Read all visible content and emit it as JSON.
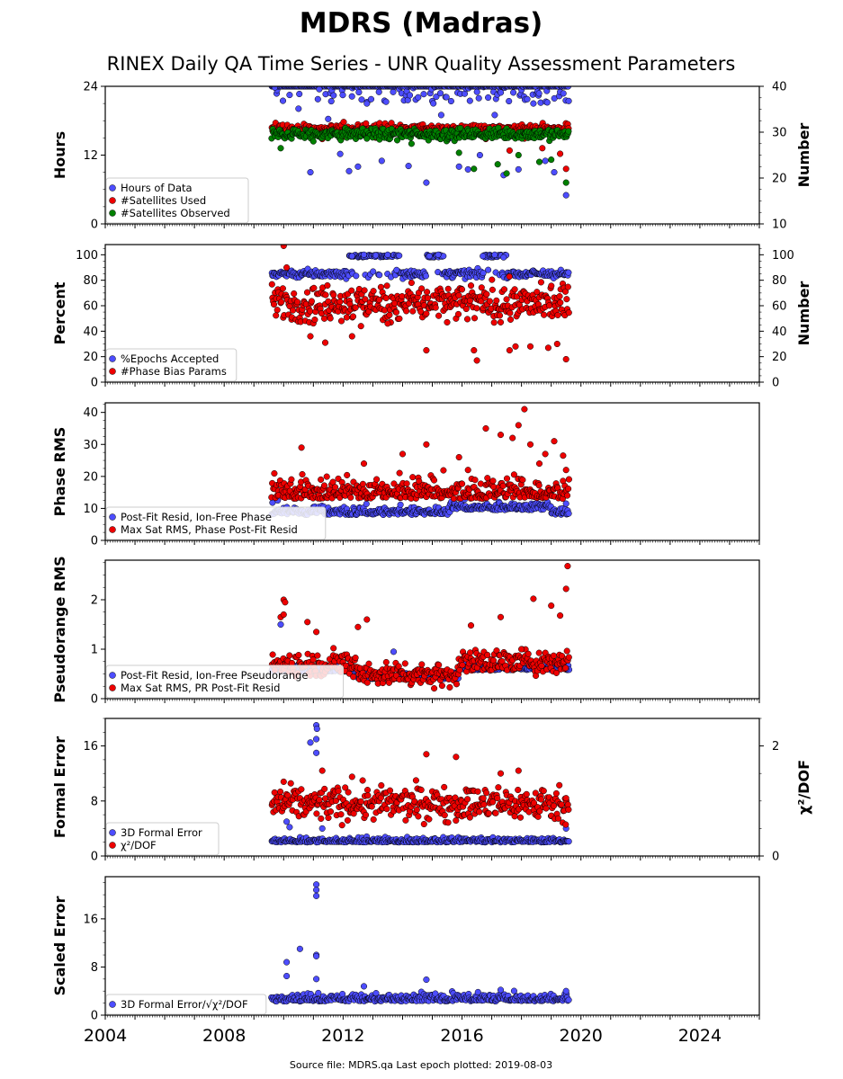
{
  "figure": {
    "title": "MDRS (Madras)",
    "subtitle": "RINEX Daily QA Time Series - UNR Quality Assessment Parameters",
    "source_note": "Source file: MDRS.qa Last epoch plotted: 2019-08-03"
  },
  "colors": {
    "blue": "#4d4dff",
    "red": "#ee0000",
    "green": "#008000"
  },
  "chart_data": [
    {
      "type": "scatter",
      "ylabel": "Hours",
      "ylabel2": "Number",
      "xlim": [
        2004,
        2026
      ],
      "ylim": [
        0,
        24
      ],
      "ylim2": [
        10,
        40
      ],
      "yticks": [
        0,
        12,
        24
      ],
      "yticks2": [
        10,
        20,
        30,
        40
      ],
      "legend_position": "lower-left",
      "series": [
        {
          "name": "Hours of Data",
          "color": "#4d4dff",
          "axis": "left",
          "period_start": 2009.6,
          "period_end": 2019.59,
          "points": [
            [
              2009.7,
              23.8
            ],
            [
              2010.2,
              22.5
            ],
            [
              2010.5,
              20.1
            ],
            [
              2010.9,
              9.0
            ],
            [
              2011.2,
              23.5
            ],
            [
              2011.5,
              18.3
            ],
            [
              2011.9,
              12.2
            ],
            [
              2012.2,
              9.2
            ],
            [
              2012.5,
              10.0
            ],
            [
              2012.8,
              21.0
            ],
            [
              2013.3,
              11.0
            ],
            [
              2013.6,
              16.5
            ],
            [
              2014.2,
              10.1
            ],
            [
              2014.8,
              7.2
            ],
            [
              2015.3,
              19.0
            ],
            [
              2015.6,
              15.0
            ],
            [
              2015.9,
              10.0
            ],
            [
              2016.2,
              9.5
            ],
            [
              2016.6,
              12.0
            ],
            [
              2017.1,
              19.0
            ],
            [
              2017.4,
              8.5
            ],
            [
              2017.9,
              9.5
            ],
            [
              2018.4,
              21.0
            ],
            [
              2018.8,
              11.0
            ],
            [
              2019.1,
              9.0
            ],
            [
              2019.5,
              5.0
            ]
          ]
        },
        {
          "name": "#Satellites Used",
          "color": "#ee0000",
          "axis": "right",
          "period_start": 2009.6,
          "period_end": 2019.59,
          "points": [
            [
              2010.8,
              29.4
            ],
            [
              2011.3,
              28.5
            ],
            [
              2012.0,
              29.0
            ],
            [
              2013.1,
              28.8
            ],
            [
              2014.5,
              29.5
            ],
            [
              2015.5,
              28.2
            ],
            [
              2016.8,
              28.5
            ],
            [
              2017.6,
              26.0
            ],
            [
              2018.1,
              28.6
            ],
            [
              2018.7,
              26.5
            ],
            [
              2019.3,
              25.3
            ],
            [
              2019.5,
              22.0
            ]
          ]
        },
        {
          "name": "#Satellites Observed",
          "color": "#008000",
          "axis": "right",
          "period_start": 2009.6,
          "period_end": 2019.59,
          "points": [
            [
              2009.9,
              26.5
            ],
            [
              2011.0,
              28.0
            ],
            [
              2012.8,
              28.6
            ],
            [
              2014.3,
              27.5
            ],
            [
              2015.9,
              25.5
            ],
            [
              2016.4,
              22.0
            ],
            [
              2017.2,
              23.0
            ],
            [
              2017.5,
              21.0
            ],
            [
              2017.9,
              25.0
            ],
            [
              2018.6,
              23.5
            ],
            [
              2019.0,
              24.0
            ],
            [
              2019.5,
              19.0
            ]
          ]
        }
      ]
    },
    {
      "type": "scatter",
      "ylabel": "Percent",
      "ylabel2": "Number",
      "xlim": [
        2004,
        2026
      ],
      "ylim": [
        0,
        108
      ],
      "ylim2": [
        0,
        108
      ],
      "yticks": [
        0,
        20,
        40,
        60,
        80,
        100
      ],
      "yticks2": [
        0,
        20,
        40,
        60,
        80,
        100
      ],
      "legend_position": "lower-left",
      "series": [
        {
          "name": "%Epochs Accepted",
          "color": "#4d4dff",
          "axis": "left",
          "period_start": 2009.6,
          "period_end": 2019.59,
          "points": [
            [
              2012.3,
              99.0
            ],
            [
              2012.7,
              100.0
            ],
            [
              2013.1,
              99.5
            ],
            [
              2013.5,
              100.0
            ],
            [
              2014.9,
              99.0
            ],
            [
              2015.2,
              100.0
            ],
            [
              2016.7,
              99.0
            ],
            [
              2017.1,
              100.0
            ],
            [
              2017.4,
              98.0
            ],
            [
              2013.8,
              88.0
            ]
          ]
        },
        {
          "name": "#Phase Bias Params",
          "color": "#ee0000",
          "axis": "right",
          "period_start": 2009.6,
          "period_end": 2019.59,
          "points": [
            [
              2010.0,
              107.0
            ],
            [
              2010.1,
              90.0
            ],
            [
              2010.9,
              36.0
            ],
            [
              2011.4,
              31.0
            ],
            [
              2012.3,
              36.0
            ],
            [
              2012.6,
              44.0
            ],
            [
              2013.5,
              46.0
            ],
            [
              2014.3,
              78.0
            ],
            [
              2014.8,
              25.0
            ],
            [
              2015.5,
              47.0
            ],
            [
              2016.4,
              25.0
            ],
            [
              2016.5,
              17.0
            ],
            [
              2017.6,
              25.0
            ],
            [
              2017.8,
              28.0
            ],
            [
              2018.3,
              28.0
            ],
            [
              2018.9,
              27.0
            ],
            [
              2019.2,
              30.0
            ],
            [
              2019.5,
              18.0
            ]
          ]
        }
      ]
    },
    {
      "type": "scatter",
      "ylabel": "Phase RMS",
      "xlim": [
        2004,
        2026
      ],
      "ylim": [
        0,
        43
      ],
      "yticks": [
        0,
        10,
        20,
        30,
        40
      ],
      "legend_position": "lower-left",
      "series": [
        {
          "name": "Post-Fit Resid, Ion-Free Phase",
          "color": "#4d4dff",
          "axis": "left",
          "period_start": 2009.6,
          "period_end": 2019.59,
          "points": [
            [
              2009.8,
              12.5
            ],
            [
              2019.5,
              11.5
            ]
          ]
        },
        {
          "name": "Max Sat RMS, Phase Post-Fit Resid",
          "color": "#ee0000",
          "axis": "left",
          "period_start": 2009.6,
          "period_end": 2019.59,
          "points": [
            [
              2010.6,
              29.0
            ],
            [
              2012.7,
              24.0
            ],
            [
              2014.0,
              27.0
            ],
            [
              2014.8,
              30.0
            ],
            [
              2015.9,
              26.0
            ],
            [
              2016.2,
              22.0
            ],
            [
              2016.8,
              35.0
            ],
            [
              2017.3,
              33.0
            ],
            [
              2017.7,
              32.0
            ],
            [
              2017.9,
              36.0
            ],
            [
              2018.1,
              41.0
            ],
            [
              2018.3,
              30.0
            ],
            [
              2018.6,
              24.0
            ],
            [
              2018.8,
              27.0
            ],
            [
              2019.1,
              31.0
            ],
            [
              2019.4,
              26.5
            ],
            [
              2019.5,
              22.0
            ]
          ]
        }
      ]
    },
    {
      "type": "scatter",
      "ylabel": "Pseudorange RMS",
      "xlim": [
        2004,
        2026
      ],
      "ylim": [
        0,
        2.8
      ],
      "yticks": [
        0,
        1,
        2
      ],
      "legend_position": "lower-left",
      "series": [
        {
          "name": "Post-Fit Resid, Ion-Free Pseudorange",
          "color": "#4d4dff",
          "axis": "left",
          "period_start": 2009.6,
          "period_end": 2019.59,
          "points": [
            [
              2009.9,
              1.5
            ],
            [
              2013.7,
              0.95
            ],
            [
              2019.5,
              0.6
            ]
          ]
        },
        {
          "name": "Max Sat RMS, PR Post-Fit Resid",
          "color": "#ee0000",
          "axis": "left",
          "period_start": 2009.6,
          "period_end": 2019.59,
          "points": [
            [
              2010.0,
              2.0
            ],
            [
              2010.05,
              1.95
            ],
            [
              2009.9,
              1.65
            ],
            [
              2010.0,
              1.7
            ],
            [
              2010.8,
              1.55
            ],
            [
              2011.1,
              1.35
            ],
            [
              2012.5,
              1.45
            ],
            [
              2012.8,
              1.6
            ],
            [
              2016.3,
              1.48
            ],
            [
              2017.3,
              1.65
            ],
            [
              2018.0,
              1.0
            ],
            [
              2018.4,
              2.02
            ],
            [
              2019.0,
              1.88
            ],
            [
              2019.3,
              1.68
            ],
            [
              2019.5,
              2.22
            ],
            [
              2019.55,
              2.68
            ]
          ]
        }
      ]
    },
    {
      "type": "scatter",
      "ylabel": "Formal Error",
      "ylabel2": "χ²/DOF",
      "xlim": [
        2004,
        2026
      ],
      "ylim": [
        0,
        20
      ],
      "ylim2": [
        0,
        2.5
      ],
      "yticks": [
        0,
        8,
        16
      ],
      "yticks2": [
        0,
        2
      ],
      "legend_position": "lower-left",
      "series": [
        {
          "name": "3D Formal Error",
          "color": "#4d4dff",
          "axis": "left",
          "period_start": 2009.6,
          "period_end": 2019.59,
          "points": [
            [
              2010.9,
              16.5
            ],
            [
              2011.1,
              19.0
            ],
            [
              2011.12,
              18.5
            ],
            [
              2011.1,
              17.0
            ],
            [
              2011.1,
              15.0
            ],
            [
              2011.3,
              4.0
            ],
            [
              2010.1,
              5.0
            ],
            [
              2010.2,
              4.2
            ],
            [
              2019.5,
              4.0
            ]
          ]
        },
        {
          "name": "χ²/DOF",
          "color": "#ee0000",
          "axis": "right",
          "period_start": 2009.6,
          "period_end": 2019.59,
          "points": [
            [
              2010.0,
              1.35
            ],
            [
              2011.3,
              1.55
            ],
            [
              2012.3,
              1.44
            ],
            [
              2014.8,
              1.85
            ],
            [
              2015.8,
              1.8
            ],
            [
              2017.3,
              1.5
            ],
            [
              2017.9,
              1.55
            ],
            [
              2019.5,
              1.05
            ]
          ]
        }
      ]
    },
    {
      "type": "scatter",
      "ylabel": "Scaled Error",
      "xlim": [
        2004,
        2026
      ],
      "ylim": [
        0,
        23
      ],
      "yticks": [
        0,
        8,
        16
      ],
      "xticks": [
        2004,
        2008,
        2012,
        2016,
        2020,
        2024
      ],
      "legend_position": "lower-left",
      "series": [
        {
          "name": "3D Formal Error/√χ²/DOF",
          "color": "#4d4dff",
          "axis": "left",
          "period_start": 2009.6,
          "period_end": 2019.59,
          "points": [
            [
              2011.1,
              21.7
            ],
            [
              2011.1,
              20.8
            ],
            [
              2011.1,
              19.8
            ],
            [
              2010.55,
              11.0
            ],
            [
              2011.1,
              10.0
            ],
            [
              2011.1,
              9.8
            ],
            [
              2010.1,
              8.8
            ],
            [
              2010.1,
              6.5
            ],
            [
              2011.1,
              6.0
            ],
            [
              2012.7,
              4.8
            ],
            [
              2014.8,
              5.9
            ],
            [
              2017.3,
              4.2
            ],
            [
              2019.5,
              4.0
            ]
          ]
        }
      ]
    }
  ]
}
